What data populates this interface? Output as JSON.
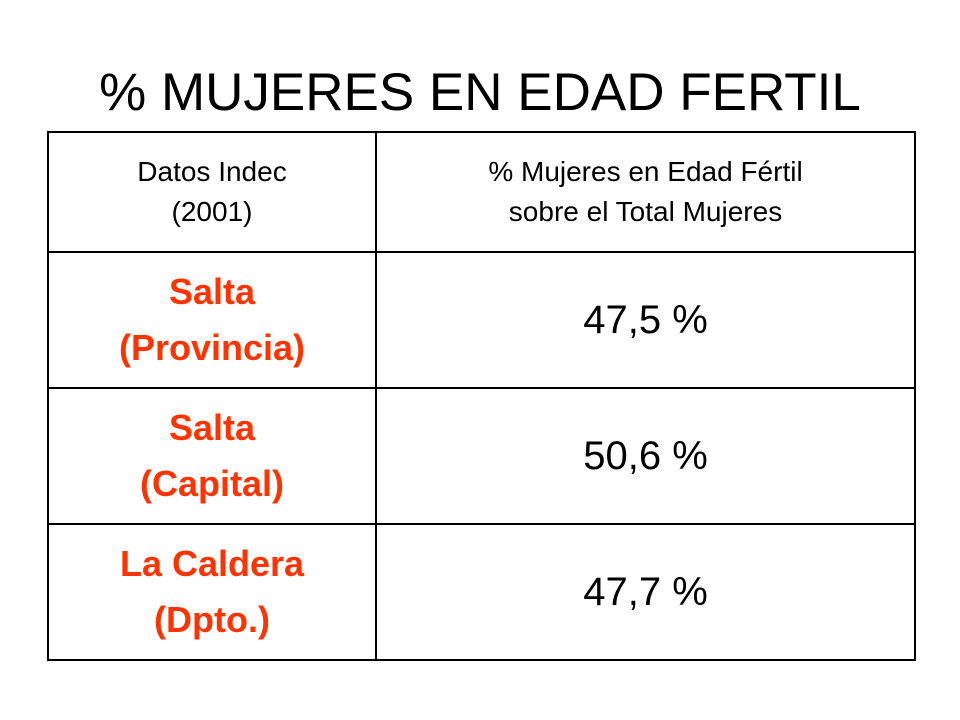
{
  "title": "% MUJERES EN EDAD FERTIL",
  "table": {
    "headers": [
      [
        "Datos Indec",
        "(2001)"
      ],
      [
        "% Mujeres en Edad Fértil",
        "sobre el Total Mujeres"
      ]
    ],
    "rows": [
      {
        "region": [
          "Salta",
          "(Provincia)"
        ],
        "value": "47,5 %"
      },
      {
        "region": [
          "Salta",
          "(Capital)"
        ],
        "value": "50,6 %"
      },
      {
        "region": [
          "La Caldera",
          "(Dpto.)"
        ],
        "value": "47,7 %"
      }
    ]
  },
  "colors": {
    "region_text": "#ff3300",
    "text": "#000000",
    "border": "#000000",
    "background": "#ffffff"
  }
}
